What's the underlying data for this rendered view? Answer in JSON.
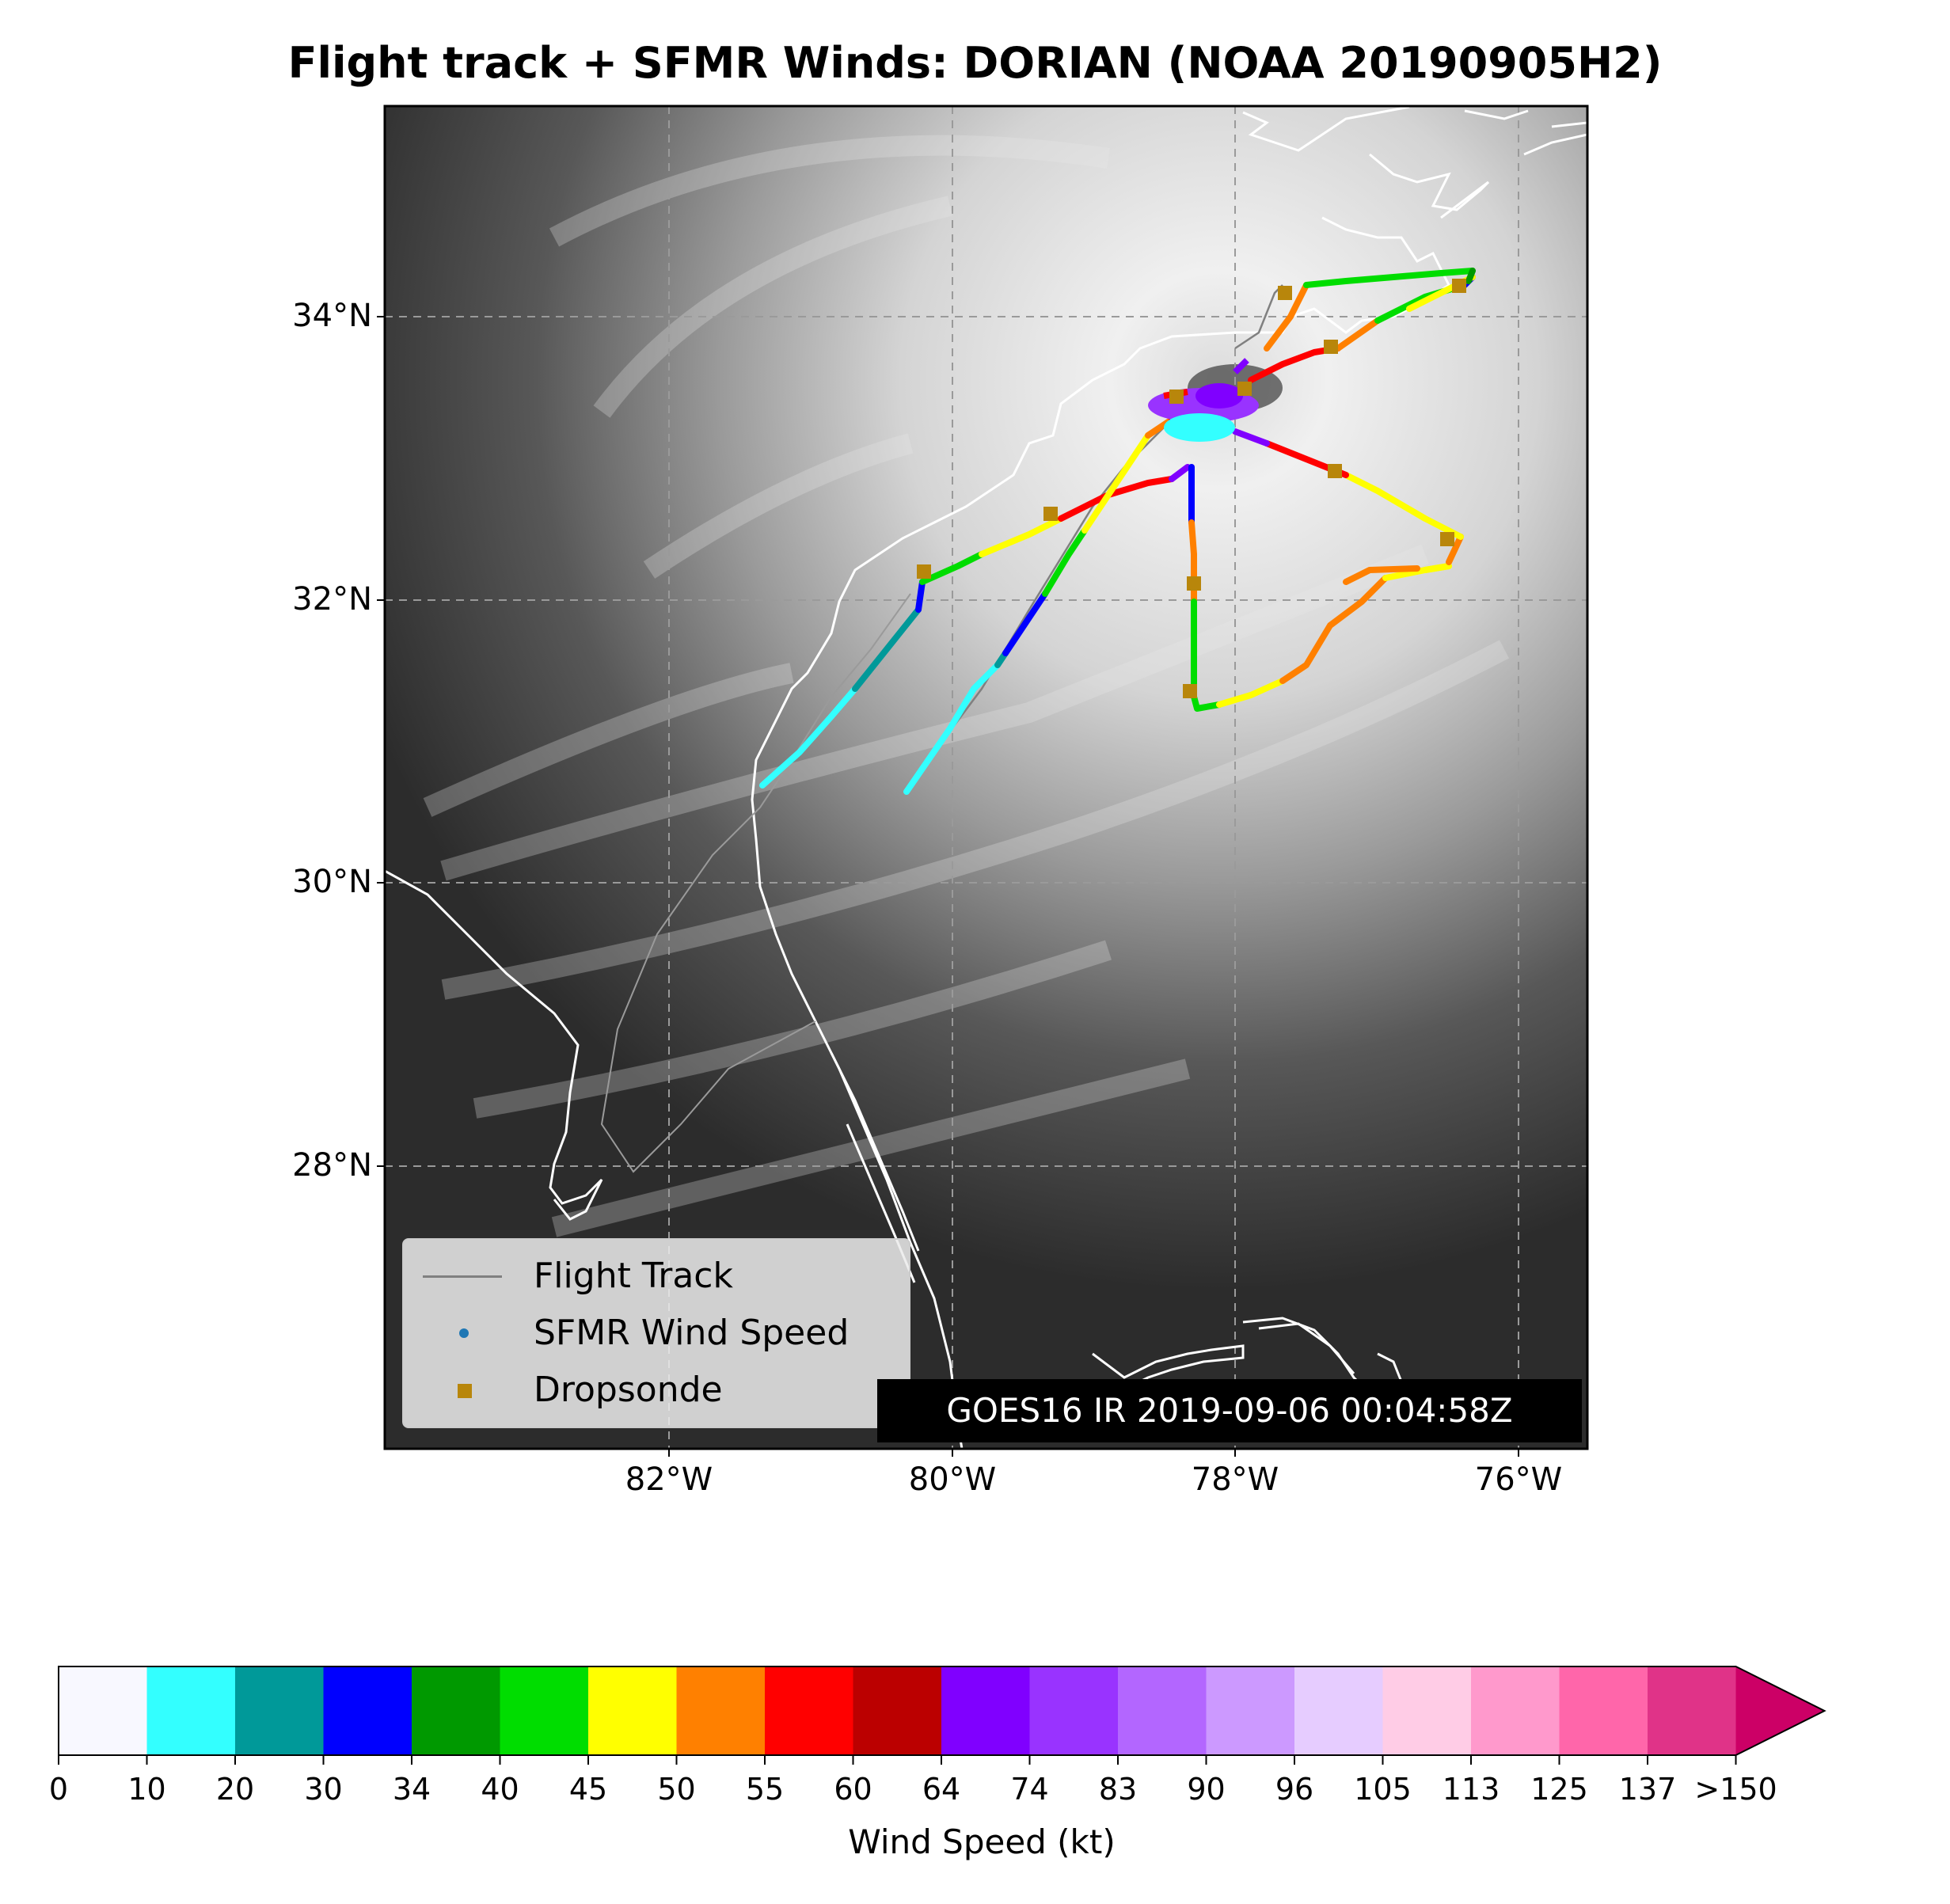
{
  "title": "Flight track + SFMR Winds: DORIAN (NOAA 20190905H2)",
  "axes": {
    "lat_labels": [
      "34°N",
      "32°N",
      "30°N",
      "28°N"
    ],
    "lon_labels": [
      "82°W",
      "80°W",
      "78°W",
      "76°W"
    ]
  },
  "legend": {
    "flight_track": "Flight Track",
    "sfmr": "SFMR Wind Speed",
    "dropsonde": "Dropsonde"
  },
  "timestamp": "GOES16 IR 2019-09-06 00:04:58Z",
  "colorbar": {
    "label": "Wind Speed (kt)",
    "ticks": [
      "0",
      "10",
      "20",
      "30",
      "34",
      "40",
      "45",
      "50",
      "55",
      "60",
      "64",
      "74",
      "83",
      "90",
      "96",
      "105",
      "113",
      "125",
      "137",
      ">150"
    ],
    "colors": [
      "#f8f8ff",
      "#33ffff",
      "#009999",
      "#0000ff",
      "#009900",
      "#00dd00",
      "#ffff00",
      "#ff8000",
      "#ff0000",
      "#bb0000",
      "#8000ff",
      "#9933ff",
      "#b366ff",
      "#cc99ff",
      "#e6ccff",
      "#ffcce6",
      "#ff99cc",
      "#ff66aa",
      "#e03388",
      "#cc0066"
    ]
  },
  "colors": {
    "coastline": "#ffffff",
    "flight_track": "#808080",
    "dropsonde": "#b8860b",
    "sfmr_marker": "#1f77b4"
  }
}
